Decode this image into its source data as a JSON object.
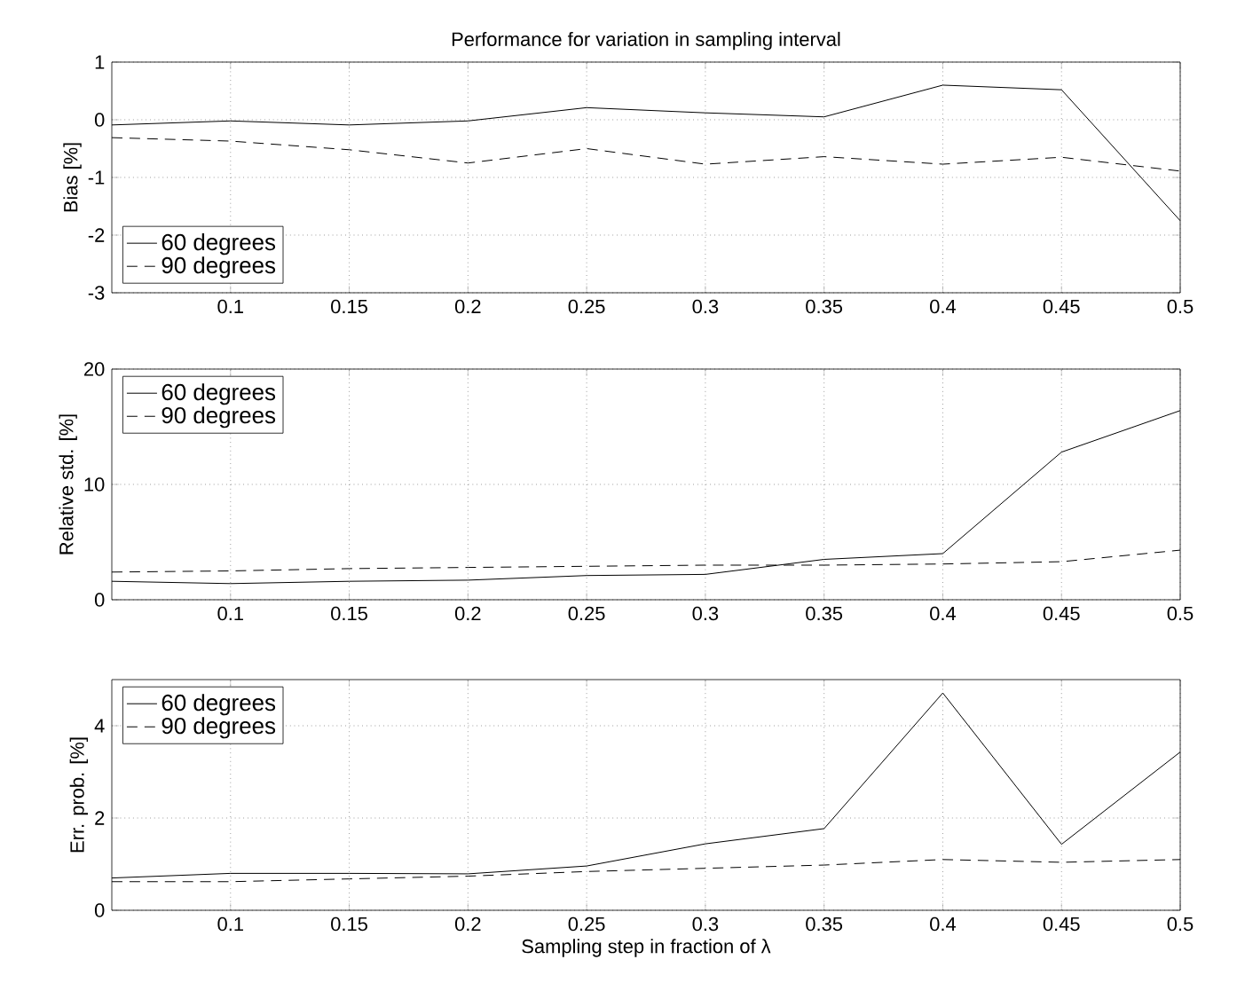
{
  "chart_data": [
    {
      "type": "line",
      "title": "Performance for variation in sampling interval",
      "ylabel": "Bias [%]",
      "x": [
        0.05,
        0.1,
        0.15,
        0.2,
        0.25,
        0.3,
        0.35,
        0.4,
        0.45,
        0.5
      ],
      "xlim": [
        0.05,
        0.5
      ],
      "xticks": [
        0.1,
        0.15,
        0.2,
        0.25,
        0.3,
        0.35,
        0.4,
        0.45,
        0.5
      ],
      "ylim": [
        -3,
        1
      ],
      "yticks": [
        -3,
        -2,
        -1,
        0,
        1
      ],
      "grid": true,
      "legend": "bottom left",
      "marker": "none",
      "series": [
        {
          "name": "60 degrees",
          "color": "#000000",
          "line_style": "solid",
          "values": [
            -0.09,
            -0.02,
            -0.09,
            -0.02,
            0.21,
            0.12,
            0.05,
            0.6,
            0.52,
            -1.75
          ]
        },
        {
          "name": "90 degrees",
          "color": "#000000",
          "line_style": "dashed",
          "values": [
            -0.31,
            -0.37,
            -0.52,
            -0.75,
            -0.5,
            -0.77,
            -0.64,
            -0.77,
            -0.65,
            -0.89
          ]
        }
      ]
    },
    {
      "type": "line",
      "ylabel": "Relative std. [%]",
      "x": [
        0.05,
        0.1,
        0.15,
        0.2,
        0.25,
        0.3,
        0.35,
        0.4,
        0.45,
        0.5
      ],
      "xlim": [
        0.05,
        0.5
      ],
      "xticks": [
        0.1,
        0.15,
        0.2,
        0.25,
        0.3,
        0.35,
        0.4,
        0.45,
        0.5
      ],
      "ylim": [
        0,
        20
      ],
      "yticks": [
        0,
        10,
        20
      ],
      "grid": true,
      "legend": "top left",
      "marker": "none",
      "series": [
        {
          "name": "60 degrees",
          "color": "#000000",
          "line_style": "solid",
          "values": [
            1.6,
            1.4,
            1.6,
            1.7,
            2.1,
            2.2,
            3.5,
            4.0,
            12.8,
            16.4
          ]
        },
        {
          "name": "90 degrees",
          "color": "#000000",
          "line_style": "dashed",
          "values": [
            2.4,
            2.5,
            2.7,
            2.8,
            2.9,
            3.0,
            3.0,
            3.1,
            3.3,
            4.3
          ]
        }
      ]
    },
    {
      "type": "line",
      "ylabel": "Err. prob. [%]",
      "xlabel": "Sampling step in fraction of λ",
      "x": [
        0.05,
        0.1,
        0.15,
        0.2,
        0.25,
        0.3,
        0.35,
        0.4,
        0.45,
        0.5
      ],
      "xlim": [
        0.05,
        0.5
      ],
      "xticks": [
        0.1,
        0.15,
        0.2,
        0.25,
        0.3,
        0.35,
        0.4,
        0.45,
        0.5
      ],
      "ylim": [
        0,
        5
      ],
      "yticks": [
        0,
        2,
        4
      ],
      "grid": true,
      "legend": "top left",
      "marker": "none",
      "series": [
        {
          "name": "60 degrees",
          "color": "#000000",
          "line_style": "solid",
          "values": [
            0.7,
            0.8,
            0.8,
            0.79,
            0.96,
            1.44,
            1.77,
            4.71,
            1.43,
            3.43
          ]
        },
        {
          "name": "90 degrees",
          "color": "#000000",
          "line_style": "dashed",
          "values": [
            0.62,
            0.62,
            0.68,
            0.74,
            0.84,
            0.91,
            0.98,
            1.1,
            1.04,
            1.1
          ]
        }
      ]
    }
  ]
}
